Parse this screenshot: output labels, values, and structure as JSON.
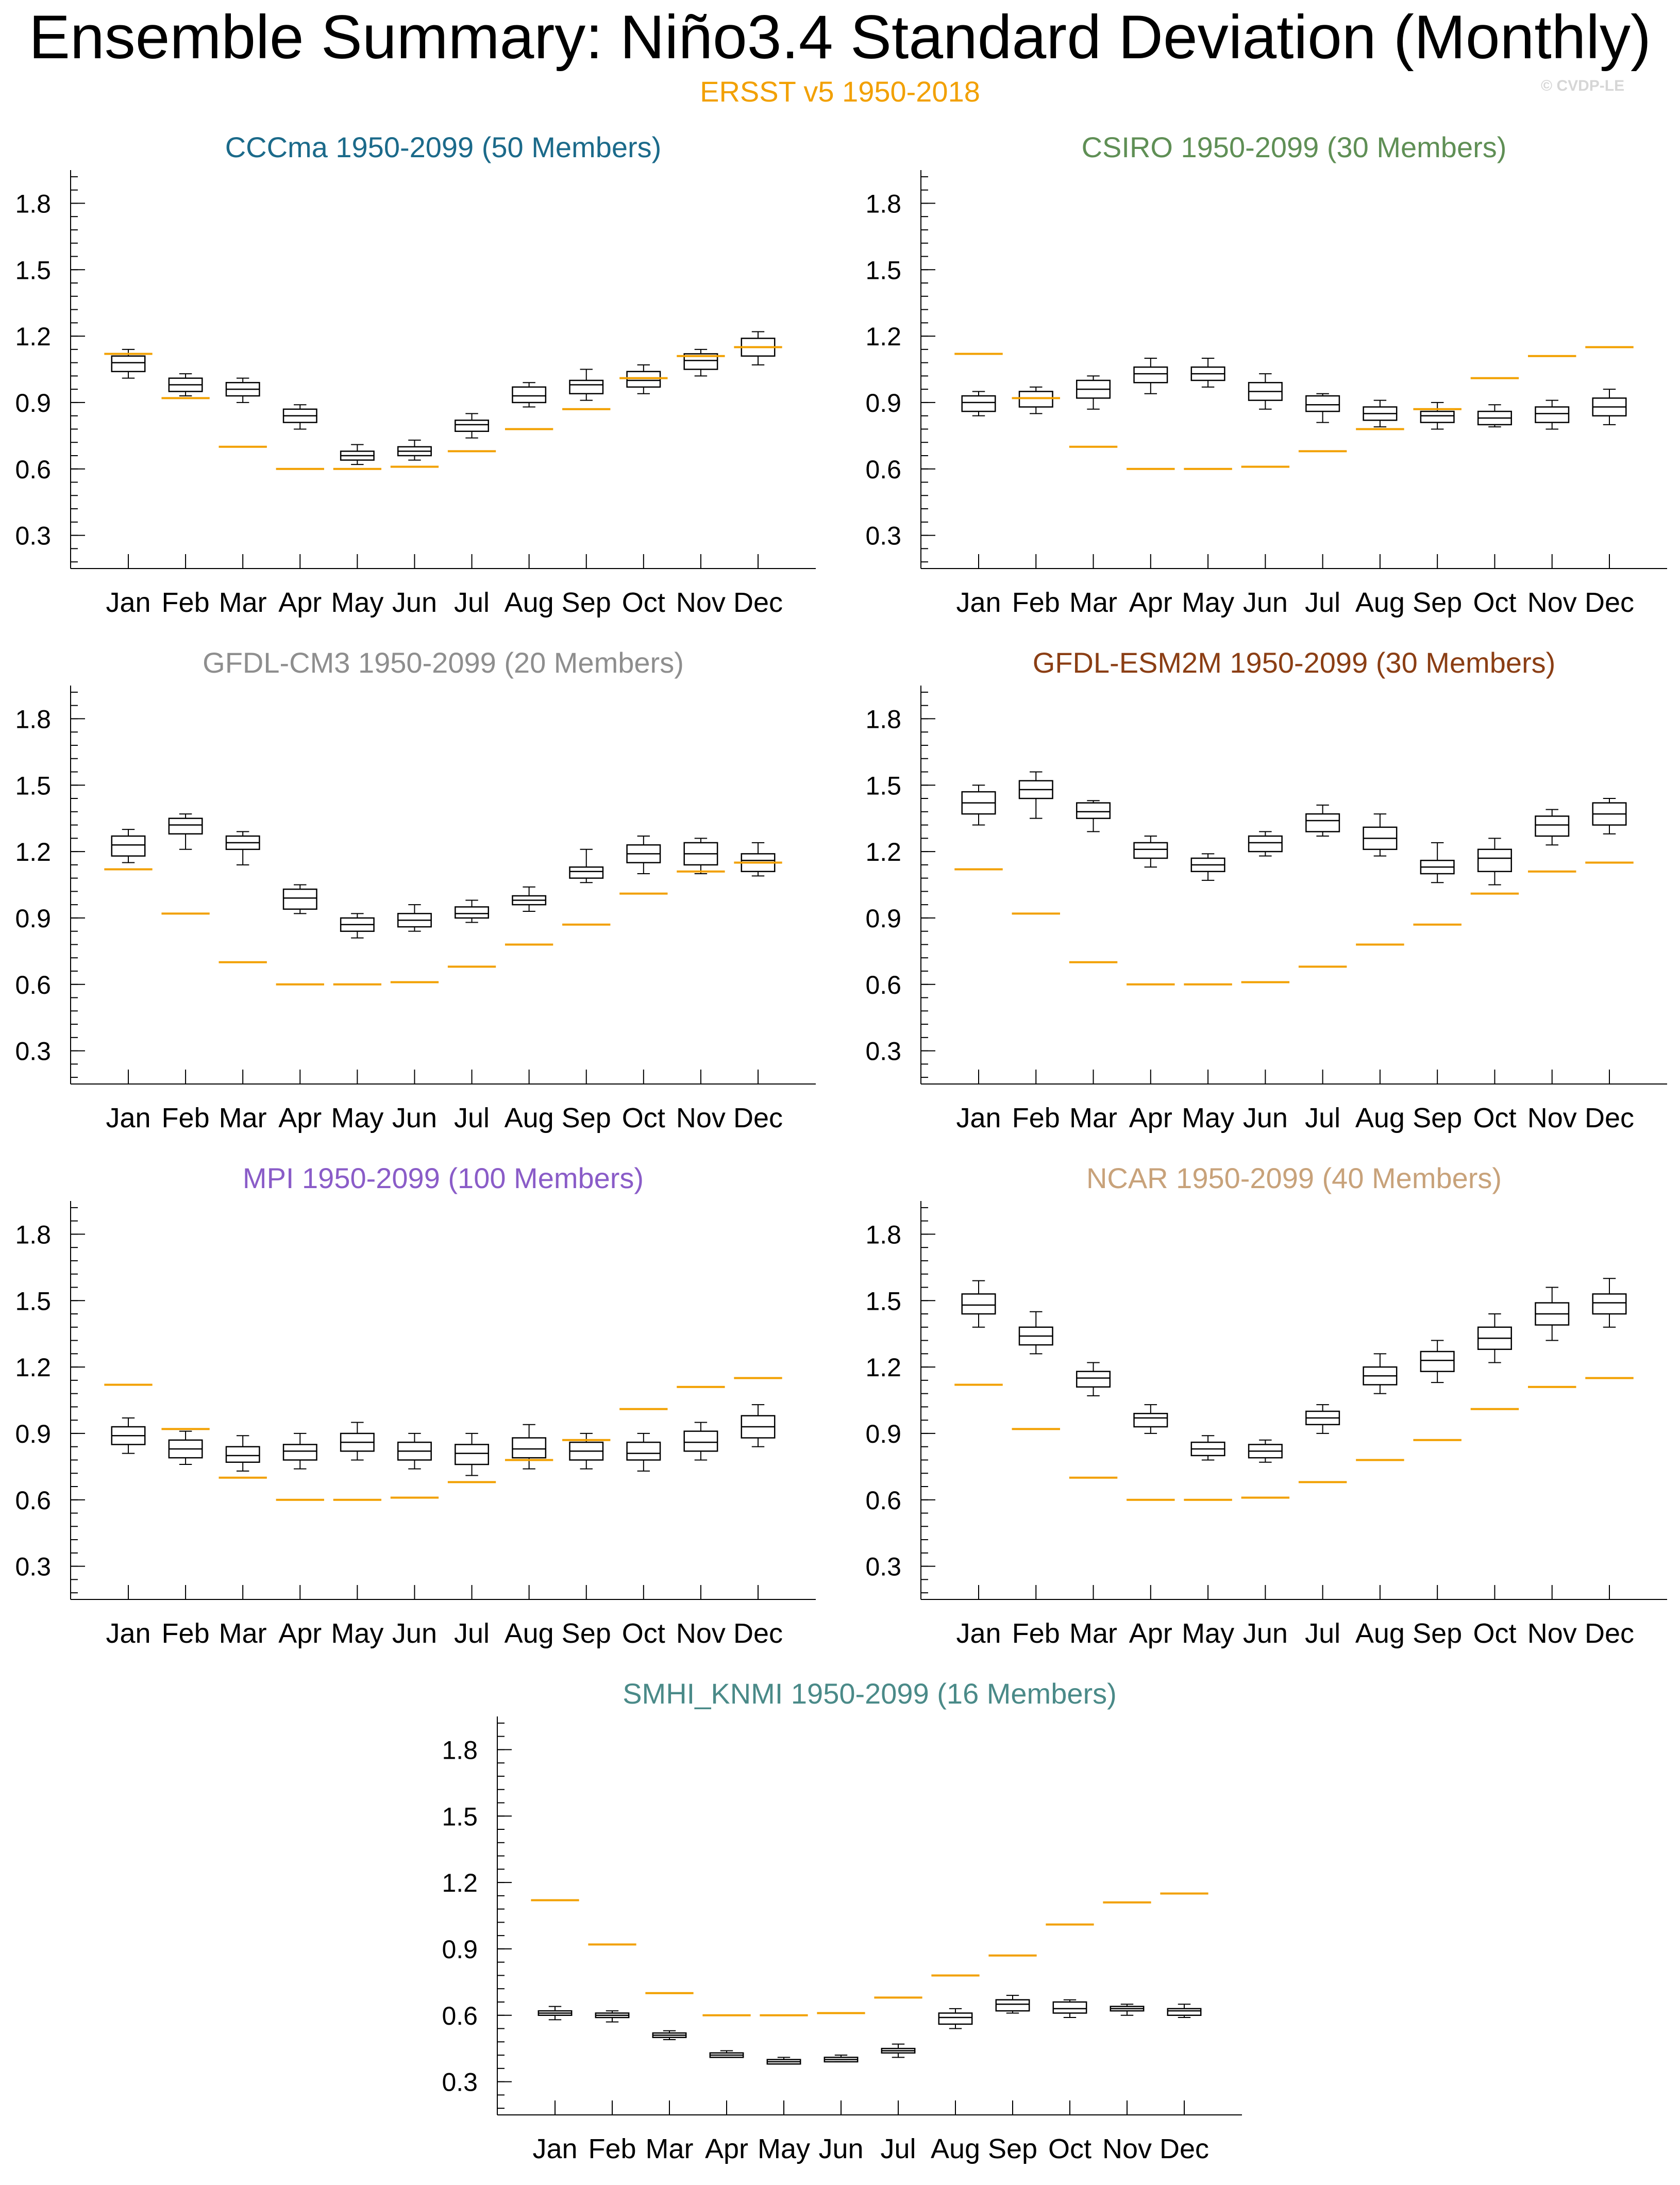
{
  "header": {
    "title": "Ensemble Summary: Niño3.4 Standard Deviation (Monthly)",
    "subtitle": "ERSST v5 1950-2018",
    "subtitle_color": "#f2a000",
    "copyright": "© CVDP-LE"
  },
  "colors": {
    "observation": "#f2a000",
    "box": "#000000"
  },
  "chart_data": [
    {
      "type": "boxplot",
      "title": "CCCma 1950-2099 (50 Members)",
      "title_color": "#1b6a8a",
      "categories": [
        "Jan",
        "Feb",
        "Mar",
        "Apr",
        "May",
        "Jun",
        "Jul",
        "Aug",
        "Sep",
        "Oct",
        "Nov",
        "Dec"
      ],
      "ylim": [
        0.15,
        1.95
      ],
      "yticks": [
        0.3,
        0.6,
        0.9,
        1.2,
        1.5,
        1.8
      ],
      "ytick_labels": [
        "0.3",
        "0.6",
        "0.9",
        "1.2",
        "1.5",
        "1.8"
      ],
      "boxes": [
        {
          "min": 1.01,
          "q1": 1.04,
          "median": 1.08,
          "q3": 1.11,
          "max": 1.14
        },
        {
          "min": 0.93,
          "q1": 0.95,
          "median": 0.98,
          "q3": 1.01,
          "max": 1.03
        },
        {
          "min": 0.9,
          "q1": 0.93,
          "median": 0.96,
          "q3": 0.99,
          "max": 1.01
        },
        {
          "min": 0.78,
          "q1": 0.81,
          "median": 0.84,
          "q3": 0.87,
          "max": 0.89
        },
        {
          "min": 0.62,
          "q1": 0.64,
          "median": 0.66,
          "q3": 0.68,
          "max": 0.71
        },
        {
          "min": 0.64,
          "q1": 0.66,
          "median": 0.68,
          "q3": 0.7,
          "max": 0.73
        },
        {
          "min": 0.74,
          "q1": 0.77,
          "median": 0.8,
          "q3": 0.82,
          "max": 0.85
        },
        {
          "min": 0.88,
          "q1": 0.9,
          "median": 0.93,
          "q3": 0.97,
          "max": 0.99
        },
        {
          "min": 0.91,
          "q1": 0.94,
          "median": 0.98,
          "q3": 1.0,
          "max": 1.05
        },
        {
          "min": 0.94,
          "q1": 0.97,
          "median": 1.0,
          "q3": 1.04,
          "max": 1.07
        },
        {
          "min": 1.02,
          "q1": 1.05,
          "median": 1.09,
          "q3": 1.12,
          "max": 1.14
        },
        {
          "min": 1.07,
          "q1": 1.11,
          "median": 1.15,
          "q3": 1.19,
          "max": 1.22
        }
      ],
      "observed": [
        1.12,
        0.92,
        0.7,
        0.6,
        0.6,
        0.61,
        0.68,
        0.78,
        0.87,
        1.01,
        1.11,
        1.15
      ]
    },
    {
      "type": "boxplot",
      "title": "CSIRO 1950-2099 (30 Members)",
      "title_color": "#5f8f55",
      "categories": [
        "Jan",
        "Feb",
        "Mar",
        "Apr",
        "May",
        "Jun",
        "Jul",
        "Aug",
        "Sep",
        "Oct",
        "Nov",
        "Dec"
      ],
      "ylim": [
        0.15,
        1.95
      ],
      "yticks": [
        0.3,
        0.6,
        0.9,
        1.2,
        1.5,
        1.8
      ],
      "ytick_labels": [
        "0.3",
        "0.6",
        "0.9",
        "1.2",
        "1.5",
        "1.8"
      ],
      "boxes": [
        {
          "min": 0.84,
          "q1": 0.86,
          "median": 0.9,
          "q3": 0.93,
          "max": 0.95
        },
        {
          "min": 0.85,
          "q1": 0.88,
          "median": 0.92,
          "q3": 0.95,
          "max": 0.97
        },
        {
          "min": 0.87,
          "q1": 0.92,
          "median": 0.96,
          "q3": 1.0,
          "max": 1.02
        },
        {
          "min": 0.94,
          "q1": 0.99,
          "median": 1.03,
          "q3": 1.06,
          "max": 1.1
        },
        {
          "min": 0.97,
          "q1": 1.0,
          "median": 1.03,
          "q3": 1.06,
          "max": 1.1
        },
        {
          "min": 0.87,
          "q1": 0.91,
          "median": 0.95,
          "q3": 0.99,
          "max": 1.03
        },
        {
          "min": 0.81,
          "q1": 0.86,
          "median": 0.89,
          "q3": 0.93,
          "max": 0.94
        },
        {
          "min": 0.79,
          "q1": 0.82,
          "median": 0.85,
          "q3": 0.88,
          "max": 0.91
        },
        {
          "min": 0.78,
          "q1": 0.81,
          "median": 0.84,
          "q3": 0.86,
          "max": 0.9
        },
        {
          "min": 0.79,
          "q1": 0.8,
          "median": 0.83,
          "q3": 0.86,
          "max": 0.89
        },
        {
          "min": 0.78,
          "q1": 0.81,
          "median": 0.85,
          "q3": 0.88,
          "max": 0.91
        },
        {
          "min": 0.8,
          "q1": 0.84,
          "median": 0.88,
          "q3": 0.92,
          "max": 0.96
        }
      ],
      "observed": [
        1.12,
        0.92,
        0.7,
        0.6,
        0.6,
        0.61,
        0.68,
        0.78,
        0.87,
        1.01,
        1.11,
        1.15
      ]
    },
    {
      "type": "boxplot",
      "title": "GFDL-CM3 1950-2099 (20 Members)",
      "title_color": "#8e8e8e",
      "categories": [
        "Jan",
        "Feb",
        "Mar",
        "Apr",
        "May",
        "Jun",
        "Jul",
        "Aug",
        "Sep",
        "Oct",
        "Nov",
        "Dec"
      ],
      "ylim": [
        0.15,
        1.95
      ],
      "yticks": [
        0.3,
        0.6,
        0.9,
        1.2,
        1.5,
        1.8
      ],
      "ytick_labels": [
        "0.3",
        "0.6",
        "0.9",
        "1.2",
        "1.5",
        "1.8"
      ],
      "boxes": [
        {
          "min": 1.15,
          "q1": 1.18,
          "median": 1.23,
          "q3": 1.27,
          "max": 1.3
        },
        {
          "min": 1.21,
          "q1": 1.28,
          "median": 1.32,
          "q3": 1.35,
          "max": 1.37
        },
        {
          "min": 1.14,
          "q1": 1.21,
          "median": 1.24,
          "q3": 1.27,
          "max": 1.29
        },
        {
          "min": 0.92,
          "q1": 0.94,
          "median": 0.99,
          "q3": 1.03,
          "max": 1.05
        },
        {
          "min": 0.81,
          "q1": 0.84,
          "median": 0.87,
          "q3": 0.9,
          "max": 0.92
        },
        {
          "min": 0.84,
          "q1": 0.86,
          "median": 0.89,
          "q3": 0.92,
          "max": 0.96
        },
        {
          "min": 0.88,
          "q1": 0.9,
          "median": 0.92,
          "q3": 0.95,
          "max": 0.98
        },
        {
          "min": 0.93,
          "q1": 0.96,
          "median": 0.98,
          "q3": 1.0,
          "max": 1.04
        },
        {
          "min": 1.06,
          "q1": 1.08,
          "median": 1.11,
          "q3": 1.13,
          "max": 1.21
        },
        {
          "min": 1.1,
          "q1": 1.15,
          "median": 1.19,
          "q3": 1.23,
          "max": 1.27
        },
        {
          "min": 1.1,
          "q1": 1.14,
          "median": 1.19,
          "q3": 1.24,
          "max": 1.26
        },
        {
          "min": 1.09,
          "q1": 1.11,
          "median": 1.16,
          "q3": 1.19,
          "max": 1.24
        }
      ],
      "observed": [
        1.12,
        0.92,
        0.7,
        0.6,
        0.6,
        0.61,
        0.68,
        0.78,
        0.87,
        1.01,
        1.11,
        1.15
      ]
    },
    {
      "type": "boxplot",
      "title": "GFDL-ESM2M 1950-2099 (30 Members)",
      "title_color": "#8b3e14",
      "categories": [
        "Jan",
        "Feb",
        "Mar",
        "Apr",
        "May",
        "Jun",
        "Jul",
        "Aug",
        "Sep",
        "Oct",
        "Nov",
        "Dec"
      ],
      "ylim": [
        0.15,
        1.95
      ],
      "yticks": [
        0.3,
        0.6,
        0.9,
        1.2,
        1.5,
        1.8
      ],
      "ytick_labels": [
        "0.3",
        "0.6",
        "0.9",
        "1.2",
        "1.5",
        "1.8"
      ],
      "boxes": [
        {
          "min": 1.32,
          "q1": 1.37,
          "median": 1.42,
          "q3": 1.47,
          "max": 1.5
        },
        {
          "min": 1.35,
          "q1": 1.44,
          "median": 1.48,
          "q3": 1.52,
          "max": 1.56
        },
        {
          "min": 1.29,
          "q1": 1.35,
          "median": 1.38,
          "q3": 1.42,
          "max": 1.43
        },
        {
          "min": 1.13,
          "q1": 1.17,
          "median": 1.21,
          "q3": 1.24,
          "max": 1.27
        },
        {
          "min": 1.07,
          "q1": 1.11,
          "median": 1.14,
          "q3": 1.17,
          "max": 1.19
        },
        {
          "min": 1.18,
          "q1": 1.2,
          "median": 1.24,
          "q3": 1.27,
          "max": 1.29
        },
        {
          "min": 1.27,
          "q1": 1.29,
          "median": 1.34,
          "q3": 1.37,
          "max": 1.41
        },
        {
          "min": 1.18,
          "q1": 1.21,
          "median": 1.26,
          "q3": 1.31,
          "max": 1.37
        },
        {
          "min": 1.06,
          "q1": 1.1,
          "median": 1.13,
          "q3": 1.16,
          "max": 1.24
        },
        {
          "min": 1.05,
          "q1": 1.11,
          "median": 1.17,
          "q3": 1.21,
          "max": 1.26
        },
        {
          "min": 1.23,
          "q1": 1.27,
          "median": 1.32,
          "q3": 1.36,
          "max": 1.39
        },
        {
          "min": 1.28,
          "q1": 1.32,
          "median": 1.37,
          "q3": 1.42,
          "max": 1.44
        }
      ],
      "observed": [
        1.12,
        0.92,
        0.7,
        0.6,
        0.6,
        0.61,
        0.68,
        0.78,
        0.87,
        1.01,
        1.11,
        1.15
      ]
    },
    {
      "type": "boxplot",
      "title": "MPI 1950-2099 (100 Members)",
      "title_color": "#8a5cc8",
      "categories": [
        "Jan",
        "Feb",
        "Mar",
        "Apr",
        "May",
        "Jun",
        "Jul",
        "Aug",
        "Sep",
        "Oct",
        "Nov",
        "Dec"
      ],
      "ylim": [
        0.15,
        1.95
      ],
      "yticks": [
        0.3,
        0.6,
        0.9,
        1.2,
        1.5,
        1.8
      ],
      "ytick_labels": [
        "0.3",
        "0.6",
        "0.9",
        "1.2",
        "1.5",
        "1.8"
      ],
      "boxes": [
        {
          "min": 0.81,
          "q1": 0.85,
          "median": 0.89,
          "q3": 0.93,
          "max": 0.97
        },
        {
          "min": 0.76,
          "q1": 0.79,
          "median": 0.83,
          "q3": 0.87,
          "max": 0.91
        },
        {
          "min": 0.73,
          "q1": 0.77,
          "median": 0.8,
          "q3": 0.84,
          "max": 0.89
        },
        {
          "min": 0.74,
          "q1": 0.78,
          "median": 0.82,
          "q3": 0.85,
          "max": 0.9
        },
        {
          "min": 0.78,
          "q1": 0.82,
          "median": 0.86,
          "q3": 0.9,
          "max": 0.95
        },
        {
          "min": 0.74,
          "q1": 0.78,
          "median": 0.82,
          "q3": 0.86,
          "max": 0.9
        },
        {
          "min": 0.71,
          "q1": 0.76,
          "median": 0.81,
          "q3": 0.85,
          "max": 0.9
        },
        {
          "min": 0.74,
          "q1": 0.79,
          "median": 0.83,
          "q3": 0.88,
          "max": 0.94
        },
        {
          "min": 0.74,
          "q1": 0.78,
          "median": 0.82,
          "q3": 0.86,
          "max": 0.9
        },
        {
          "min": 0.73,
          "q1": 0.78,
          "median": 0.81,
          "q3": 0.86,
          "max": 0.9
        },
        {
          "min": 0.78,
          "q1": 0.82,
          "median": 0.86,
          "q3": 0.91,
          "max": 0.95
        },
        {
          "min": 0.84,
          "q1": 0.88,
          "median": 0.93,
          "q3": 0.98,
          "max": 1.03
        }
      ],
      "observed": [
        1.12,
        0.92,
        0.7,
        0.6,
        0.6,
        0.61,
        0.68,
        0.78,
        0.87,
        1.01,
        1.11,
        1.15
      ]
    },
    {
      "type": "boxplot",
      "title": "NCAR 1950-2099 (40 Members)",
      "title_color": "#c8a27a",
      "categories": [
        "Jan",
        "Feb",
        "Mar",
        "Apr",
        "May",
        "Jun",
        "Jul",
        "Aug",
        "Sep",
        "Oct",
        "Nov",
        "Dec"
      ],
      "ylim": [
        0.15,
        1.95
      ],
      "yticks": [
        0.3,
        0.6,
        0.9,
        1.2,
        1.5,
        1.8
      ],
      "ytick_labels": [
        "0.3",
        "0.6",
        "0.9",
        "1.2",
        "1.5",
        "1.8"
      ],
      "boxes": [
        {
          "min": 1.38,
          "q1": 1.44,
          "median": 1.48,
          "q3": 1.53,
          "max": 1.59
        },
        {
          "min": 1.26,
          "q1": 1.3,
          "median": 1.34,
          "q3": 1.38,
          "max": 1.45
        },
        {
          "min": 1.07,
          "q1": 1.11,
          "median": 1.15,
          "q3": 1.18,
          "max": 1.22
        },
        {
          "min": 0.9,
          "q1": 0.93,
          "median": 0.97,
          "q3": 0.99,
          "max": 1.03
        },
        {
          "min": 0.78,
          "q1": 0.8,
          "median": 0.83,
          "q3": 0.86,
          "max": 0.89
        },
        {
          "min": 0.77,
          "q1": 0.79,
          "median": 0.82,
          "q3": 0.85,
          "max": 0.87
        },
        {
          "min": 0.9,
          "q1": 0.94,
          "median": 0.97,
          "q3": 1.0,
          "max": 1.03
        },
        {
          "min": 1.08,
          "q1": 1.12,
          "median": 1.16,
          "q3": 1.2,
          "max": 1.26
        },
        {
          "min": 1.13,
          "q1": 1.18,
          "median": 1.23,
          "q3": 1.27,
          "max": 1.32
        },
        {
          "min": 1.22,
          "q1": 1.28,
          "median": 1.33,
          "q3": 1.38,
          "max": 1.44
        },
        {
          "min": 1.32,
          "q1": 1.39,
          "median": 1.44,
          "q3": 1.49,
          "max": 1.56
        },
        {
          "min": 1.38,
          "q1": 1.44,
          "median": 1.49,
          "q3": 1.53,
          "max": 1.6
        }
      ],
      "observed": [
        1.12,
        0.92,
        0.7,
        0.6,
        0.6,
        0.61,
        0.68,
        0.78,
        0.87,
        1.01,
        1.11,
        1.15
      ]
    },
    {
      "type": "boxplot",
      "title": "SMHI_KNMI 1950-2099 (16 Members)",
      "title_color": "#4a8a88",
      "categories": [
        "Jan",
        "Feb",
        "Mar",
        "Apr",
        "May",
        "Jun",
        "Jul",
        "Aug",
        "Sep",
        "Oct",
        "Nov",
        "Dec"
      ],
      "ylim": [
        0.15,
        1.95
      ],
      "yticks": [
        0.3,
        0.6,
        0.9,
        1.2,
        1.5,
        1.8
      ],
      "ytick_labels": [
        "0.3",
        "0.6",
        "0.9",
        "1.2",
        "1.5",
        "1.8"
      ],
      "boxes": [
        {
          "min": 0.58,
          "q1": 0.6,
          "median": 0.61,
          "q3": 0.62,
          "max": 0.64
        },
        {
          "min": 0.57,
          "q1": 0.59,
          "median": 0.6,
          "q3": 0.61,
          "max": 0.62
        },
        {
          "min": 0.49,
          "q1": 0.5,
          "median": 0.51,
          "q3": 0.52,
          "max": 0.53
        },
        {
          "min": 0.41,
          "q1": 0.41,
          "median": 0.42,
          "q3": 0.43,
          "max": 0.44
        },
        {
          "min": 0.38,
          "q1": 0.38,
          "median": 0.39,
          "q3": 0.4,
          "max": 0.41
        },
        {
          "min": 0.39,
          "q1": 0.39,
          "median": 0.4,
          "q3": 0.41,
          "max": 0.42
        },
        {
          "min": 0.41,
          "q1": 0.43,
          "median": 0.44,
          "q3": 0.45,
          "max": 0.47
        },
        {
          "min": 0.54,
          "q1": 0.56,
          "median": 0.59,
          "q3": 0.61,
          "max": 0.63
        },
        {
          "min": 0.61,
          "q1": 0.62,
          "median": 0.65,
          "q3": 0.67,
          "max": 0.69
        },
        {
          "min": 0.59,
          "q1": 0.61,
          "median": 0.63,
          "q3": 0.66,
          "max": 0.67
        },
        {
          "min": 0.6,
          "q1": 0.62,
          "median": 0.63,
          "q3": 0.64,
          "max": 0.65
        },
        {
          "min": 0.59,
          "q1": 0.6,
          "median": 0.62,
          "q3": 0.63,
          "max": 0.65
        }
      ],
      "observed": [
        1.12,
        0.92,
        0.7,
        0.6,
        0.6,
        0.61,
        0.68,
        0.78,
        0.87,
        1.01,
        1.11,
        1.15
      ]
    }
  ]
}
